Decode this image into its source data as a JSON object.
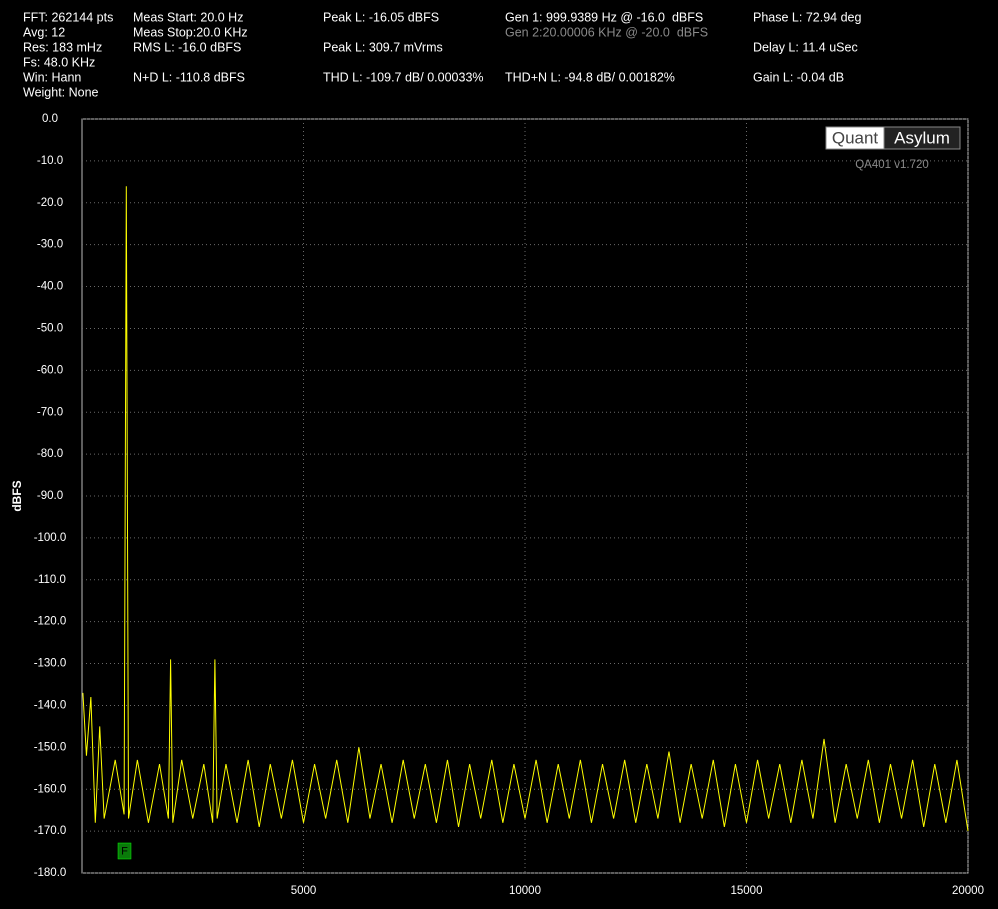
{
  "header": {
    "fft": "FFT: 262144 pts",
    "avg": "Avg: 12",
    "res": "Res: 183 mHz",
    "fs": "Fs: 48.0 KHz",
    "win": "Win: Hann",
    "weight": "Weight: None",
    "meas_start": "Meas Start: 20.0 Hz",
    "meas_stop": "Meas Stop:20.0 KHz",
    "rms": "RMS L: -16.0 dBFS",
    "nd": "N+D L: -110.8 dBFS",
    "peak_dbfs": "Peak L: -16.05 dBFS",
    "peak_mv": "Peak L: 309.7 mVrms",
    "thd": "THD L: -109.7 dB/ 0.00033%",
    "gen1": "Gen 1: 999.9389 Hz @ -16.0  dBFS",
    "gen2": "Gen 2:20.00006 KHz @ -20.0  dBFS",
    "thdn": "THD+N L: -94.8 dB/ 0.00182%",
    "phase": "Phase L: 72.94 deg",
    "delay": "Delay L: 11.4 uSec",
    "gain": "Gain L: -0.04 dB"
  },
  "logo": {
    "left": "Quant",
    "right": "Asylum",
    "version": "QA401 v1.720"
  },
  "chart_data": {
    "type": "line",
    "y_label": "dBFS",
    "marker": "F",
    "grid": true,
    "xlim": [
      0,
      20000
    ],
    "xticks": [
      5000,
      10000,
      15000,
      20000
    ],
    "ylim": [
      -180,
      0
    ],
    "yticks": [
      {
        "value": 0,
        "label": "0.0"
      },
      {
        "value": -10,
        "label": "-10.0"
      },
      {
        "value": -20,
        "label": "-20.0"
      },
      {
        "value": -30,
        "label": "-30.0"
      },
      {
        "value": -40,
        "label": "-40.0"
      },
      {
        "value": -50,
        "label": "-50.0"
      },
      {
        "value": -60,
        "label": "-60.0"
      },
      {
        "value": -70,
        "label": "-70.0"
      },
      {
        "value": -80,
        "label": "-80.0"
      },
      {
        "value": -90,
        "label": "-90.0"
      },
      {
        "value": -100,
        "label": "-100.0"
      },
      {
        "value": -110,
        "label": "-110.0"
      },
      {
        "value": -120,
        "label": "-120.0"
      },
      {
        "value": -130,
        "label": "-130.0"
      },
      {
        "value": -140,
        "label": "-140.0"
      },
      {
        "value": -150,
        "label": "-150.0"
      },
      {
        "value": -160,
        "label": "-160.0"
      },
      {
        "value": -170,
        "label": "-170.0"
      },
      {
        "value": -180,
        "label": "-180.0"
      }
    ],
    "x": [
      20,
      100,
      200,
      300,
      400,
      500,
      750,
      950,
      1000,
      1050,
      1250,
      1500,
      1750,
      1950,
      2000,
      2050,
      2250,
      2500,
      2750,
      2950,
      3000,
      3050,
      3250,
      3500,
      3750,
      4000,
      4250,
      4500,
      4750,
      5000,
      5250,
      5500,
      5750,
      6000,
      6250,
      6500,
      6750,
      7000,
      7250,
      7500,
      7750,
      8000,
      8250,
      8500,
      8750,
      9000,
      9250,
      9500,
      9750,
      10000,
      10250,
      10500,
      10750,
      11000,
      11250,
      11500,
      11750,
      12000,
      12250,
      12500,
      12750,
      13000,
      13250,
      13500,
      13750,
      14000,
      14250,
      14500,
      14750,
      15000,
      15250,
      15500,
      15750,
      16000,
      16250,
      16500,
      16750,
      17000,
      17250,
      17500,
      17750,
      18000,
      18250,
      18500,
      18750,
      19000,
      19250,
      19500,
      19750,
      20000
    ],
    "series": [
      {
        "color": "#ffff00",
        "values": [
          -137,
          -152,
          -138,
          -168,
          -145,
          -167,
          -153,
          -166,
          -16.05,
          -167,
          -153,
          -168,
          -154,
          -167,
          -129,
          -168,
          -153,
          -167,
          -154,
          -168,
          -129,
          -167,
          -154,
          -168,
          -153,
          -169,
          -154,
          -167,
          -153,
          -168,
          -154,
          -167,
          -153,
          -168,
          -150,
          -167,
          -154,
          -168,
          -153,
          -167,
          -154,
          -168,
          -153,
          -169,
          -154,
          -167,
          -153,
          -168,
          -154,
          -167,
          -153,
          -168,
          -154,
          -167,
          -153,
          -168,
          -154,
          -167,
          -153,
          -168,
          -154,
          -167,
          -151,
          -168,
          -154,
          -167,
          -153,
          -169,
          -154,
          -168,
          -153,
          -167,
          -154,
          -168,
          -153,
          -167,
          -148,
          -168,
          -154,
          -167,
          -153,
          -168,
          -154,
          -167,
          -153,
          -169,
          -154,
          -168,
          -153,
          -170
        ]
      }
    ]
  }
}
